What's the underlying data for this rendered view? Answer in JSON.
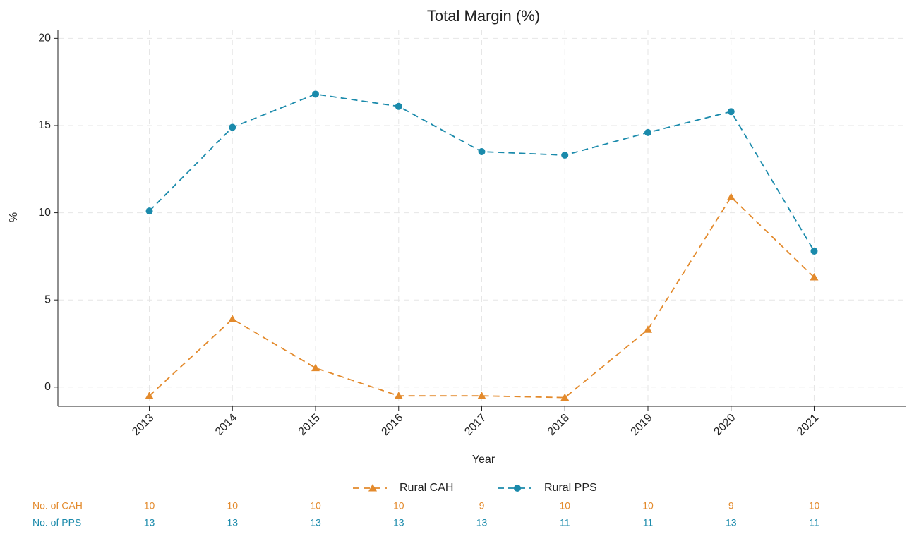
{
  "chart_data": {
    "type": "line",
    "title": "Total Margin (%)",
    "x_label": "Year",
    "y_label": "%",
    "x": [
      2013,
      2014,
      2015,
      2016,
      2017,
      2018,
      2019,
      2020,
      2021
    ],
    "xlim": [
      2011.9,
      2022.1
    ],
    "xticks": [
      2013,
      2014,
      2015,
      2016,
      2017,
      2018,
      2019,
      2020,
      2021
    ],
    "ylim": [
      -1.1,
      20.5
    ],
    "yticks": [
      0,
      5,
      10,
      15,
      20
    ],
    "grid": true,
    "legend": "bottom",
    "series": [
      {
        "name": "Rural CAH",
        "color": "#e38a2c",
        "marker": "triangle",
        "values": [
          -0.5,
          3.9,
          1.1,
          -0.5,
          -0.5,
          -0.6,
          3.3,
          10.9,
          6.3
        ]
      },
      {
        "name": "Rural PPS",
        "color": "#1a8aab",
        "marker": "circle",
        "values": [
          10.1,
          14.9,
          16.8,
          16.1,
          13.5,
          13.3,
          14.6,
          15.8,
          7.8
        ]
      }
    ],
    "table": {
      "rows": [
        {
          "label": "No. of CAH",
          "color": "#e38a2c",
          "values": [
            10,
            10,
            10,
            10,
            9,
            10,
            10,
            9,
            10
          ]
        },
        {
          "label": "No. of PPS",
          "color": "#1a8aab",
          "values": [
            13,
            13,
            13,
            13,
            13,
            11,
            11,
            13,
            11
          ]
        }
      ]
    }
  }
}
